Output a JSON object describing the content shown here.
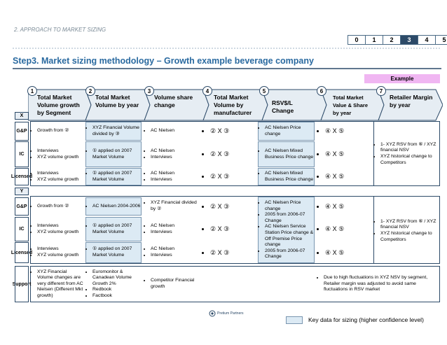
{
  "breadcrumb": "2. APPROACH TO MARKET SIZING",
  "stepnav": {
    "steps": [
      "0",
      "1",
      "2",
      "3",
      "4",
      "5"
    ],
    "active_index": 3
  },
  "title": "Step3. Market sizing methodology – Growth example beverage company",
  "example_label": "Example",
  "columns": [
    {
      "num": "1",
      "label": "Total Market Volume growth by Segment"
    },
    {
      "num": "2",
      "label": "Total Market Volume by year"
    },
    {
      "num": "3",
      "label": "Volume share change"
    },
    {
      "num": "4",
      "label": "Total Market Volume by manufacturer"
    },
    {
      "num": "5",
      "label": "RSV$/L Change"
    },
    {
      "num": "6",
      "label": "Total Market Value & Share by year"
    },
    {
      "num": "7",
      "label": "Retailer Margin by year"
    }
  ],
  "section_x": "X",
  "section_y": "Y",
  "x_rows": [
    {
      "label": "G&P",
      "c1": [
        "Growth from ②"
      ],
      "c2": [
        "XYZ Financial Volume divided by ③"
      ],
      "c3": [
        "AC Nielsen"
      ],
      "c4": "② X ③",
      "c5": [
        "AC Nielsen Price change"
      ],
      "c6": "④ X ⑤"
    },
    {
      "label": "IC",
      "c1": [
        "Interviews",
        "XYZ volume growth"
      ],
      "c2": [
        "① applied on 2007 Market Volume"
      ],
      "c3": [
        "AC Nielsen",
        "Interviews"
      ],
      "c4": "② X ③",
      "c5": [
        "AC Nielsen Mixed Business Price change"
      ],
      "c6": "④ X ⑤"
    },
    {
      "label": "Licensed",
      "c1": [
        "Interviews",
        "XYZ volume growth"
      ],
      "c2": [
        "① applied on 2007 Market Volume"
      ],
      "c3": [
        "AC Nielsen",
        "Interviews"
      ],
      "c4": "② X ③",
      "c5": [
        "AC Nielsen Mixed Business Price change"
      ],
      "c6": "④ X ⑤"
    }
  ],
  "x_c7": [
    "1- XYZ RSV from ⑥ / XYZ financial NSV",
    "XYZ historical change to Competitors"
  ],
  "y_rows": [
    {
      "label": "G&P",
      "c1": [
        "Growth from ②"
      ],
      "c2": [
        "AC Nielsen 2004-2006"
      ],
      "c3": [
        "XYZ Financial divided by ②"
      ],
      "c4": "② X ③",
      "c6": "④ X ⑤"
    },
    {
      "label": "IC",
      "c1": [
        "Interviews",
        "XYZ volume growth"
      ],
      "c2": [
        "① applied on 2007 Market Volume"
      ],
      "c3": [
        "AC Nielsen",
        "Interviews"
      ],
      "c4": "② X ③",
      "c6": "④ X ⑤"
    },
    {
      "label": "Licensed",
      "c1": [
        "Interviews",
        "XYZ volume growth"
      ],
      "c2": [
        "① applied on 2007 Market Volume"
      ],
      "c3": [
        "AC Nielsen",
        "Interviews"
      ],
      "c4": "② X ③",
      "c6": "④ X ⑤"
    }
  ],
  "y_c5": [
    "AC Nielsen Price change",
    "2005 from 2006-07 Change",
    "AC Nielsen Service Station Price change & Off Premise Price change",
    "2005 from 2006-07 Change"
  ],
  "y_c7": [
    "1- XYZ RSV from ⑥ / XYZ financial NSV",
    "XYZ historical change to Competitors"
  ],
  "support": {
    "label": "Support",
    "c1": [
      "XYZ Financial Volume changes are very different from AC Nielsen (Different Mkt growth)"
    ],
    "c2": [
      "Euromonitor & Canadean Volume Growth 2%",
      "Redbook",
      "Factbook"
    ],
    "c3": [
      "Competitor Financial growth"
    ],
    "c6": [
      "Due to high fluctuations in XYZ NSV by segment, Retailer margin was adjusted to avoid same fluctuations in RSV market"
    ]
  },
  "logo_text": "Pretium Partners",
  "legend": "Key data for sizing (higher confidence level)",
  "colors": {
    "dark_navy": "#2c4a68",
    "title_blue": "#2a6aa0",
    "highlight": "#dceaf4",
    "example_pink": "#f0b6f2",
    "header_band": "#e6edf3"
  }
}
